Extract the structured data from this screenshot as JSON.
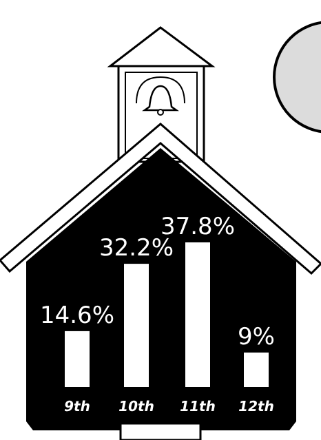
{
  "chart_data": {
    "type": "bar",
    "categories": [
      "9th",
      "10th",
      "11th",
      "12th"
    ],
    "values": [
      14.6,
      32.2,
      37.8,
      9
    ],
    "value_labels": [
      "14.6%",
      "32.2%",
      "37.8%",
      "9%"
    ],
    "color": "#ffffff"
  }
}
